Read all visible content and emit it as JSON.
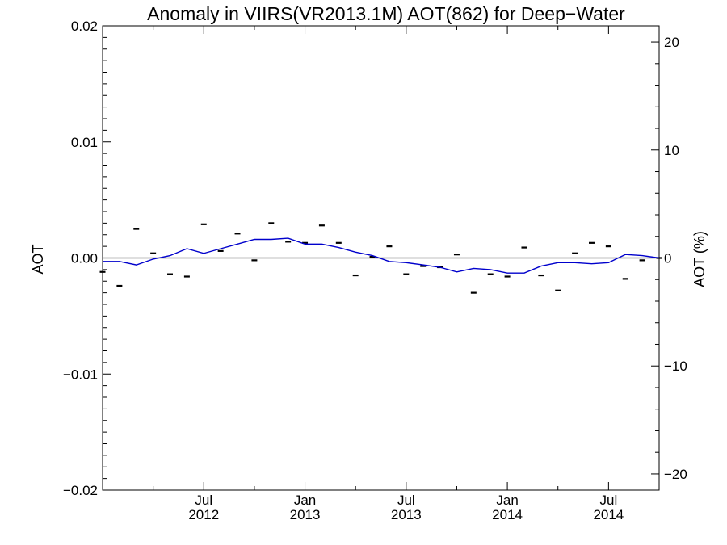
{
  "chart_data": {
    "type": "line",
    "title": "Anomaly in VIIRS(VR2013.1M) AOT(862) for Deep−Water",
    "ylabel": "AOT",
    "y2label": "AOT (%)",
    "xlim": [
      "2012-01",
      "2014-10"
    ],
    "ylim": [
      -0.02,
      0.02
    ],
    "y2lim": [
      -21.5,
      21.5
    ],
    "yticks": [
      {
        "value": 0.02,
        "label": "0.02"
      },
      {
        "value": 0.01,
        "label": "0.01"
      },
      {
        "value": 0.0,
        "label": "0.00"
      },
      {
        "value": -0.01,
        "label": "−0.01"
      },
      {
        "value": -0.02,
        "label": "−0.02"
      }
    ],
    "y2ticks": [
      {
        "value": 20,
        "label": "20"
      },
      {
        "value": 10,
        "label": "10"
      },
      {
        "value": 0,
        "label": "0"
      },
      {
        "value": -10,
        "label": "−10"
      },
      {
        "value": -20,
        "label": "−20"
      }
    ],
    "xticks": [
      {
        "month": "2012-07",
        "label1": "Jul",
        "label2": "2012"
      },
      {
        "month": "2013-01",
        "label1": "Jan",
        "label2": "2013"
      },
      {
        "month": "2013-07",
        "label1": "Jul",
        "label2": "2013"
      },
      {
        "month": "2014-01",
        "label1": "Jan",
        "label2": "2014"
      },
      {
        "month": "2014-07",
        "label1": "Jul",
        "label2": "2014"
      }
    ],
    "zero_line": true,
    "grid": false,
    "series": [
      {
        "style": "markers",
        "color": "#000000",
        "points": [
          [
            "2012-01",
            -0.0012
          ],
          [
            "2012-02",
            -0.0024
          ],
          [
            "2012-03",
            0.0025
          ],
          [
            "2012-04",
            0.0004
          ],
          [
            "2012-05",
            -0.0014
          ],
          [
            "2012-06",
            -0.0016
          ],
          [
            "2012-07",
            0.0029
          ],
          [
            "2012-08",
            0.0006
          ],
          [
            "2012-09",
            0.0021
          ],
          [
            "2012-10",
            -0.0002
          ],
          [
            "2012-11",
            0.003
          ],
          [
            "2012-12",
            0.0014
          ],
          [
            "2013-01",
            0.0013
          ],
          [
            "2013-02",
            0.0028
          ],
          [
            "2013-03",
            0.0013
          ],
          [
            "2013-04",
            -0.0015
          ],
          [
            "2013-05",
            0.0001
          ],
          [
            "2013-06",
            0.001
          ],
          [
            "2013-07",
            -0.0014
          ],
          [
            "2013-08",
            -0.0007
          ],
          [
            "2013-09",
            -0.0008
          ],
          [
            "2013-10",
            0.0003
          ],
          [
            "2013-11",
            -0.003
          ],
          [
            "2013-12",
            -0.0014
          ],
          [
            "2014-01",
            -0.0016
          ],
          [
            "2014-02",
            0.0009
          ],
          [
            "2014-03",
            -0.0015
          ],
          [
            "2014-04",
            -0.0028
          ],
          [
            "2014-05",
            0.0004
          ],
          [
            "2014-06",
            0.0013
          ],
          [
            "2014-07",
            0.001
          ],
          [
            "2014-08",
            -0.0018
          ],
          [
            "2014-09",
            -0.0002
          ],
          [
            "2014-10",
            0.0
          ]
        ]
      },
      {
        "style": "line",
        "color": "#0000cc",
        "points": [
          [
            "2012-01",
            -0.0003
          ],
          [
            "2012-02",
            -0.0003
          ],
          [
            "2012-03",
            -0.0006
          ],
          [
            "2012-04",
            -0.0001
          ],
          [
            "2012-05",
            0.0002
          ],
          [
            "2012-06",
            0.0008
          ],
          [
            "2012-07",
            0.0004
          ],
          [
            "2012-08",
            0.0008
          ],
          [
            "2012-09",
            0.0012
          ],
          [
            "2012-10",
            0.0016
          ],
          [
            "2012-11",
            0.0016
          ],
          [
            "2012-12",
            0.0017
          ],
          [
            "2013-01",
            0.0012
          ],
          [
            "2013-02",
            0.0012
          ],
          [
            "2013-03",
            0.0009
          ],
          [
            "2013-04",
            0.0005
          ],
          [
            "2013-05",
            0.0002
          ],
          [
            "2013-06",
            -0.0003
          ],
          [
            "2013-07",
            -0.0004
          ],
          [
            "2013-08",
            -0.0006
          ],
          [
            "2013-09",
            -0.0008
          ],
          [
            "2013-10",
            -0.0012
          ],
          [
            "2013-11",
            -0.0009
          ],
          [
            "2013-12",
            -0.001
          ],
          [
            "2014-01",
            -0.0013
          ],
          [
            "2014-02",
            -0.0013
          ],
          [
            "2014-03",
            -0.0007
          ],
          [
            "2014-04",
            -0.0004
          ],
          [
            "2014-05",
            -0.0004
          ],
          [
            "2014-06",
            -0.0005
          ],
          [
            "2014-07",
            -0.0004
          ],
          [
            "2014-08",
            0.0003
          ],
          [
            "2014-09",
            0.0002
          ],
          [
            "2014-10",
            0.0
          ]
        ]
      }
    ]
  }
}
